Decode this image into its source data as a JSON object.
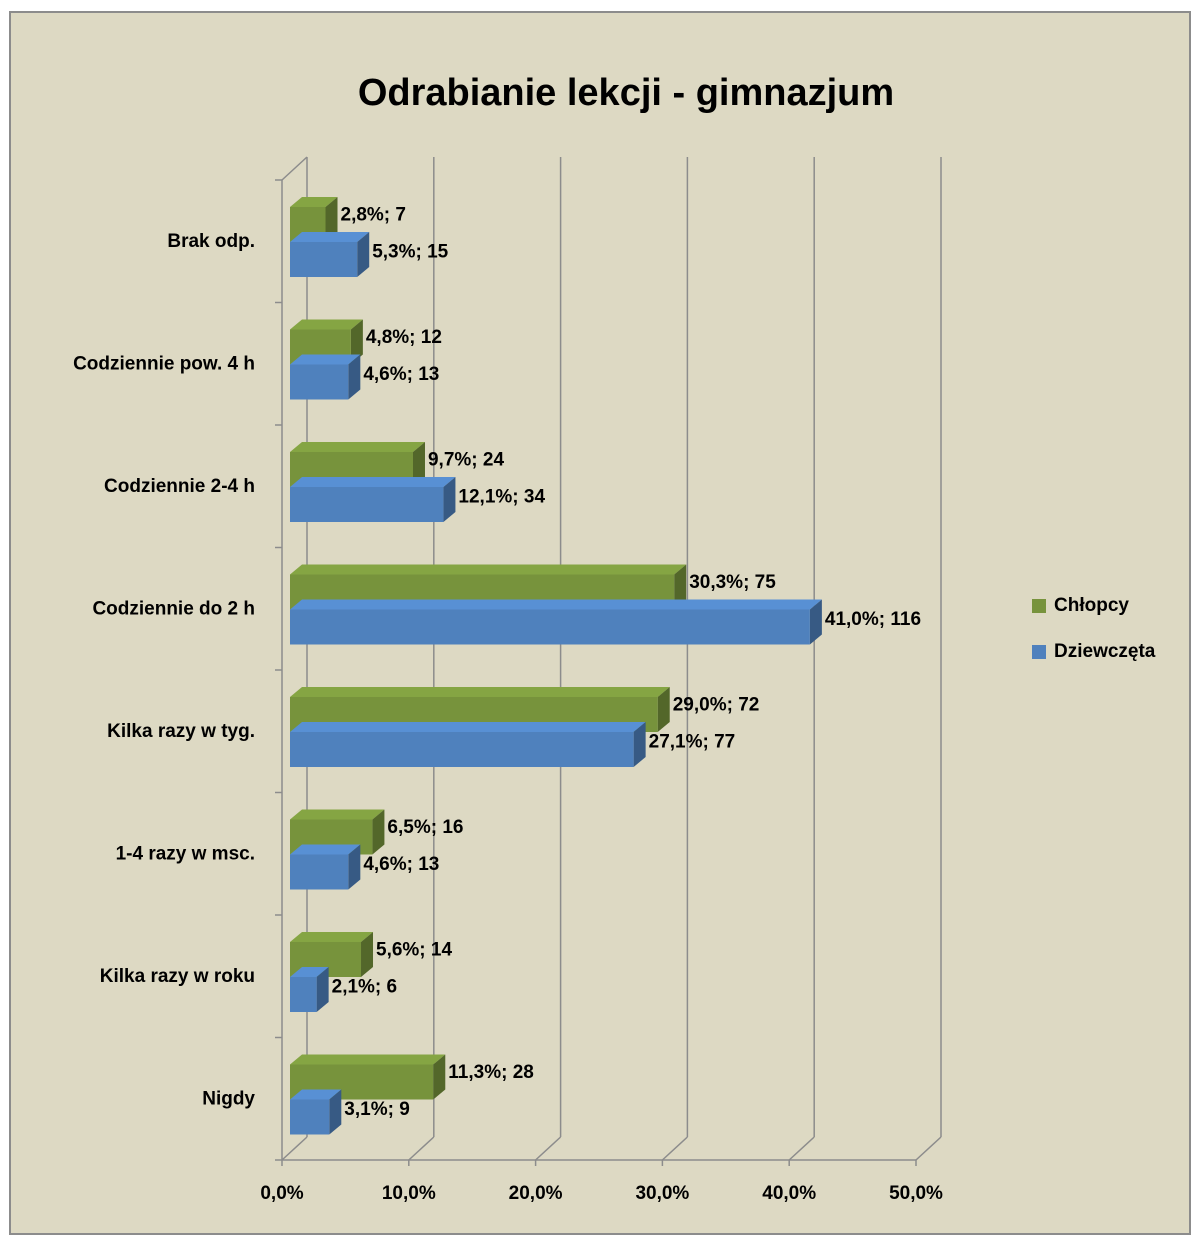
{
  "chart_data": {
    "type": "bar3d_horizontal",
    "title": "Odrabianie lekcji - gimnazjum",
    "categories": [
      "Brak odp.",
      "Codziennie pow. 4 h",
      "Codziennie 2-4 h",
      "Codziennie do 2 h",
      "Kilka razy w tyg.",
      "1-4 razy w msc.",
      "Kilka razy w roku",
      "Nigdy"
    ],
    "series": [
      {
        "name": "Chłopcy",
        "color": "#77933c",
        "values": [
          2.8,
          4.8,
          9.7,
          30.3,
          29.0,
          6.5,
          5.6,
          11.3
        ],
        "value_labels": [
          "2,8%; 7",
          "4,8%; 12",
          "9,7%; 24",
          "30,3%; 75",
          "29,0%; 72",
          "6,5%; 16",
          "5,6%; 14",
          "11,3%; 28"
        ]
      },
      {
        "name": "Dziewczęta",
        "color": "#4f81bd",
        "values": [
          5.3,
          4.6,
          12.1,
          41.0,
          27.1,
          4.6,
          2.1,
          3.1
        ],
        "value_labels": [
          "5,3%; 15",
          "4,6%; 13",
          "12,1%; 34",
          "41,0%; 116",
          "27,1%; 77",
          "4,6%; 13",
          "2,1%; 6",
          "3,1%; 9"
        ]
      }
    ],
    "xlim": [
      0,
      50
    ],
    "xticks": [
      {
        "value": 0,
        "label": "0,0%"
      },
      {
        "value": 10,
        "label": "10,0%"
      },
      {
        "value": 20,
        "label": "20,0%"
      },
      {
        "value": 30,
        "label": "30,0%"
      },
      {
        "value": 40,
        "label": "40,0%"
      },
      {
        "value": 50,
        "label": "50,0%"
      }
    ],
    "grid": true,
    "legend": "right"
  }
}
